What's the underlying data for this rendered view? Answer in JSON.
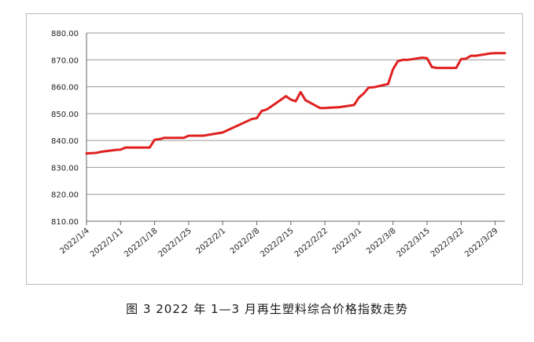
{
  "caption": "图 3  2022 年 1—3 月再生塑料综合价格指数走势",
  "colors": {
    "line": "#e02020",
    "grid": "#9a9a9a",
    "frame": "#bdbdbd"
  },
  "chart_data": {
    "type": "line",
    "title": "",
    "xlabel": "",
    "ylabel": "",
    "ylim": [
      810,
      880
    ],
    "y_ticks": [
      "880.00",
      "870.00",
      "860.00",
      "850.00",
      "840.00",
      "830.00",
      "820.00",
      "810.00"
    ],
    "y_tick_values": [
      880,
      870,
      860,
      850,
      840,
      830,
      820,
      810
    ],
    "x_tick_labels": [
      "2022/1/4",
      "2022/1/11",
      "2022/1/18",
      "2022/1/25",
      "2022/2/1",
      "2022/2/8",
      "2022/2/15",
      "2022/2/22",
      "2022/3/1",
      "2022/3/8",
      "2022/3/15",
      "2022/3/22",
      "2022/3/29"
    ],
    "grid": true,
    "series": [
      {
        "x": [
          "2022/1/4",
          "2022/1/5",
          "2022/1/6",
          "2022/1/7",
          "2022/1/10",
          "2022/1/11",
          "2022/1/12",
          "2022/1/13",
          "2022/1/14",
          "2022/1/17",
          "2022/1/18",
          "2022/1/19",
          "2022/1/20",
          "2022/1/21",
          "2022/1/24",
          "2022/1/25",
          "2022/1/26",
          "2022/1/27",
          "2022/1/28",
          "2022/2/1",
          "2022/2/7",
          "2022/2/8",
          "2022/2/9",
          "2022/2/10",
          "2022/2/11",
          "2022/2/14",
          "2022/2/15",
          "2022/2/16",
          "2022/2/17",
          "2022/2/18",
          "2022/2/21",
          "2022/2/22",
          "2022/2/23",
          "2022/2/24",
          "2022/2/25",
          "2022/2/28",
          "2022/3/1",
          "2022/3/2",
          "2022/3/3",
          "2022/3/4",
          "2022/3/7",
          "2022/3/8",
          "2022/3/9",
          "2022/3/10",
          "2022/3/11",
          "2022/3/14",
          "2022/3/15",
          "2022/3/16",
          "2022/3/17",
          "2022/3/18",
          "2022/3/21",
          "2022/3/22",
          "2022/3/23",
          "2022/3/24",
          "2022/3/25",
          "2022/3/28",
          "2022/3/29",
          "2022/3/30",
          "2022/3/31"
        ],
        "values": [
          835.2,
          835.3,
          835.4,
          835.8,
          836.5,
          836.6,
          837.4,
          837.4,
          837.4,
          837.4,
          840.3,
          840.5,
          841.0,
          841.0,
          841.0,
          841.8,
          841.8,
          841.8,
          841.8,
          843.0,
          848.0,
          848.3,
          851.0,
          851.5,
          852.7,
          856.5,
          855.2,
          854.6,
          858.0,
          855.0,
          852.1,
          852.1,
          852.2,
          852.3,
          852.4,
          853.2,
          856.0,
          857.5,
          859.7,
          859.8,
          861.0,
          866.5,
          869.5,
          870.0,
          870.0,
          870.8,
          870.6,
          867.3,
          867.0,
          867.0,
          867.0,
          870.3,
          870.4,
          871.5,
          871.5,
          872.4,
          872.5,
          872.5,
          872.5
        ]
      }
    ]
  }
}
